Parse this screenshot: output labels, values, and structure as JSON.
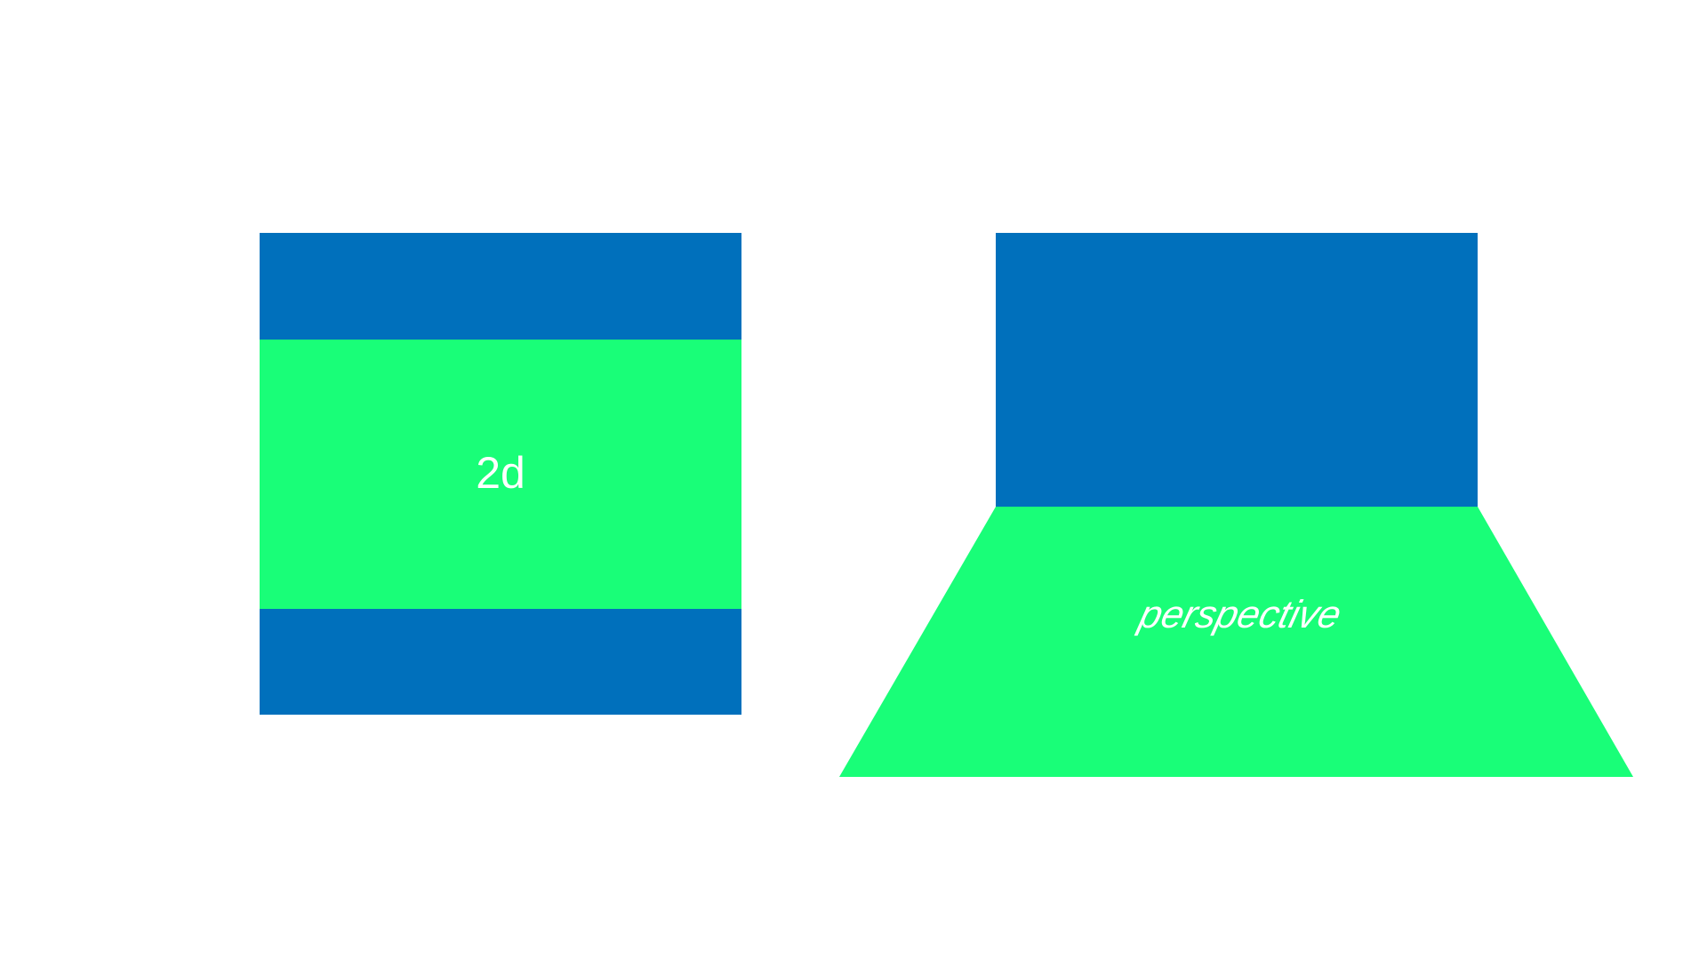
{
  "diagram": {
    "left_panel": {
      "label": "2d"
    },
    "right_panel": {
      "label": "perspective"
    }
  },
  "colors": {
    "background": "#ffffff",
    "wall_blue": "#0070bc",
    "floor_green": "#19fe78",
    "text": "#ffffff"
  }
}
